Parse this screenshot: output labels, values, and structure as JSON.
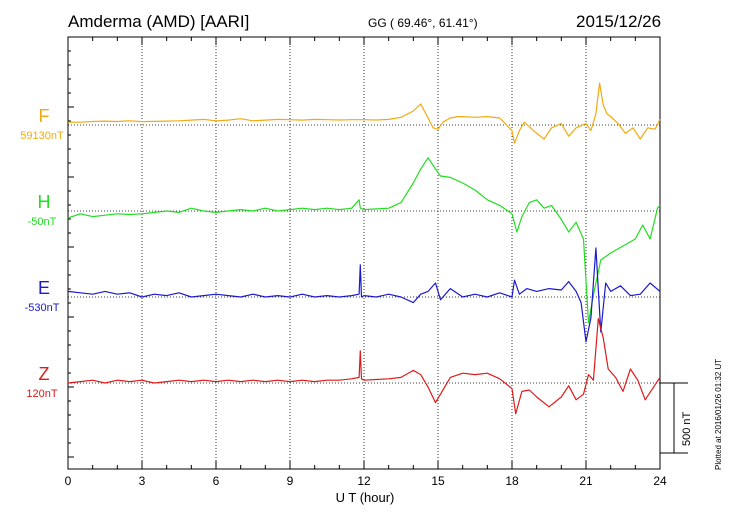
{
  "header": {
    "station": "Amderma (AMD)  [AARI]",
    "coords": "GG ( 69.46°,  61.41°)",
    "date": "2015/12/26"
  },
  "footer": {
    "plotted": "Plotted at 2016/01/26 01:32 UT",
    "scale": "500 nT"
  },
  "chart_data": {
    "type": "line",
    "xlabel": "U T (hour)",
    "xlim": [
      0,
      24
    ],
    "xticks": [
      0,
      3,
      6,
      9,
      12,
      15,
      18,
      21,
      24
    ],
    "xtick_labels": [
      "0",
      "3",
      "6",
      "9",
      "12",
      "15",
      "18",
      "21",
      "24"
    ],
    "grid": true,
    "scale_bar_nT": 500,
    "series": [
      {
        "name": "F",
        "baseline_label": "59130nT",
        "baseline_nT": 59130,
        "color": "#f2aa10",
        "x": [
          0,
          0.5,
          1,
          1.5,
          2,
          2.5,
          3,
          3.5,
          4,
          4.5,
          5,
          5.5,
          6,
          6.5,
          7,
          7.5,
          8,
          8.5,
          9,
          9.5,
          10,
          10.5,
          11,
          11.5,
          12,
          12.5,
          13,
          13.5,
          14,
          14.3,
          14.6,
          14.8,
          15,
          15.2,
          15.5,
          15.8,
          16,
          16.5,
          17,
          17.5,
          18,
          18.1,
          18.3,
          18.5,
          19,
          19.3,
          19.6,
          20,
          20.3,
          20.6,
          21,
          21.2,
          21.4,
          21.55,
          21.7,
          21.85,
          22,
          22.3,
          22.6,
          22.9,
          23.2,
          23.5,
          23.8,
          24
        ],
        "values": [
          20,
          20,
          25,
          28,
          25,
          30,
          24,
          26,
          28,
          30,
          35,
          40,
          30,
          35,
          45,
          30,
          35,
          40,
          38,
          35,
          40,
          38,
          36,
          38,
          38,
          36,
          40,
          55,
          100,
          150,
          50,
          -20,
          -30,
          20,
          50,
          60,
          60,
          55,
          60,
          50,
          -40,
          -130,
          -40,
          20,
          -60,
          -100,
          -20,
          10,
          -80,
          -20,
          10,
          -40,
          80,
          300,
          140,
          80,
          60,
          10,
          -60,
          -20,
          -100,
          -20,
          -30,
          40
        ]
      },
      {
        "name": "H",
        "baseline_label": "-50nT",
        "baseline_nT": -50,
        "color": "#22dd22",
        "x": [
          0,
          0.5,
          1,
          1.5,
          2,
          2.5,
          3,
          3.5,
          4,
          4.5,
          5,
          5.5,
          6,
          6.5,
          7,
          7.5,
          8,
          8.5,
          9,
          9.5,
          10,
          10.5,
          11,
          11.5,
          11.8,
          11.85,
          12,
          12.5,
          13,
          13.5,
          14,
          14.3,
          14.6,
          14.9,
          15.1,
          15.5,
          16,
          16.5,
          17,
          17.5,
          18,
          18.2,
          18.4,
          18.7,
          19,
          19.3,
          19.6,
          20,
          20.3,
          20.6,
          20.9,
          21.1,
          21.3,
          21.6,
          22,
          22.5,
          23,
          23.3,
          23.6,
          23.9,
          24
        ],
        "values": [
          -50,
          -20,
          -40,
          -30,
          -20,
          -25,
          -20,
          -10,
          0,
          -10,
          20,
          0,
          -10,
          0,
          10,
          0,
          20,
          0,
          10,
          20,
          10,
          20,
          10,
          20,
          80,
          20,
          10,
          15,
          20,
          60,
          200,
          300,
          380,
          300,
          250,
          240,
          200,
          150,
          80,
          40,
          -20,
          -150,
          -40,
          60,
          80,
          20,
          40,
          -60,
          -150,
          -80,
          -200,
          -800,
          -600,
          -350,
          -300,
          -250,
          -200,
          -100,
          -200,
          20,
          40
        ]
      },
      {
        "name": "E",
        "baseline_label": "-530nT",
        "baseline_nT": -530,
        "color": "#1a1acc",
        "x": [
          0,
          0.5,
          1,
          1.5,
          2,
          2.5,
          3,
          3.5,
          4,
          4.5,
          5,
          5.5,
          6,
          6.5,
          7,
          7.5,
          8,
          8.5,
          9,
          9.5,
          10,
          10.5,
          11,
          11.5,
          11.8,
          11.85,
          11.9,
          12,
          12.5,
          13,
          13.5,
          14,
          14.3,
          14.6,
          14.9,
          15.1,
          15.5,
          16,
          16.5,
          17,
          17.5,
          18,
          18.1,
          18.3,
          18.6,
          19,
          19.5,
          20,
          20.3,
          20.6,
          20.8,
          21,
          21.2,
          21.4,
          21.6,
          21.8,
          22,
          22.4,
          22.8,
          23.2,
          23.6,
          24
        ],
        "values": [
          40,
          30,
          20,
          40,
          20,
          30,
          0,
          20,
          10,
          30,
          0,
          10,
          20,
          10,
          0,
          20,
          0,
          10,
          0,
          20,
          0,
          10,
          0,
          10,
          20,
          230,
          0,
          10,
          0,
          20,
          0,
          -40,
          20,
          40,
          100,
          -20,
          60,
          0,
          20,
          0,
          30,
          0,
          120,
          20,
          60,
          40,
          60,
          50,
          110,
          40,
          -40,
          -320,
          -150,
          350,
          -250,
          100,
          40,
          80,
          10,
          20,
          100,
          40
        ]
      },
      {
        "name": "Z",
        "baseline_label": "120nT",
        "baseline_nT": 120,
        "color": "#e01a1a",
        "x": [
          0,
          0.5,
          1,
          1.5,
          2,
          2.5,
          3,
          3.5,
          4,
          4.5,
          5,
          5.5,
          6,
          6.5,
          7,
          7.5,
          8,
          8.5,
          9,
          9.5,
          10,
          10.5,
          11,
          11.5,
          11.8,
          11.85,
          11.9,
          12,
          12.5,
          13,
          13.5,
          14,
          14.3,
          14.6,
          14.9,
          15.1,
          15.5,
          16,
          16.5,
          17,
          17.5,
          18,
          18.15,
          18.4,
          18.7,
          19,
          19.5,
          20,
          20.3,
          20.6,
          20.9,
          21.1,
          21.3,
          21.5,
          21.7,
          21.9,
          22.2,
          22.5,
          22.8,
          23.1,
          23.4,
          23.7,
          24
        ],
        "values": [
          0,
          10,
          20,
          0,
          20,
          10,
          20,
          0,
          10,
          20,
          10,
          20,
          10,
          20,
          10,
          20,
          10,
          20,
          10,
          20,
          10,
          20,
          20,
          30,
          40,
          230,
          30,
          20,
          25,
          30,
          40,
          90,
          60,
          -30,
          -140,
          -80,
          40,
          70,
          60,
          70,
          30,
          -40,
          -220,
          -60,
          -50,
          -100,
          -170,
          -100,
          -20,
          -120,
          -80,
          60,
          20,
          460,
          320,
          100,
          40,
          -60,
          100,
          20,
          -120,
          -40,
          40
        ]
      }
    ]
  }
}
